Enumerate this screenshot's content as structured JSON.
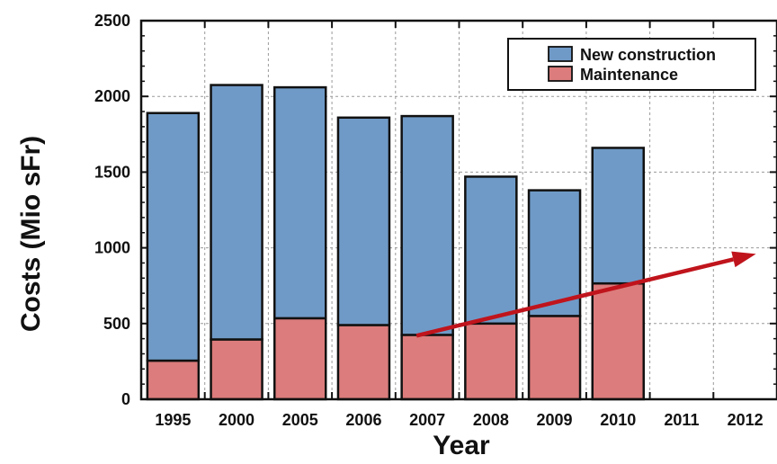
{
  "chart_data": {
    "type": "bar",
    "stacked": true,
    "categories": [
      "1995",
      "2000",
      "2005",
      "2006",
      "2007",
      "2008",
      "2009",
      "2010",
      "2011",
      "2012"
    ],
    "series": [
      {
        "name": "Maintenance",
        "color": "#dc7c7c",
        "values": [
          255,
          395,
          535,
          490,
          425,
          500,
          550,
          765,
          null,
          null
        ]
      },
      {
        "name": "New construction",
        "color": "#6f9ac7",
        "values": [
          1635,
          1680,
          1525,
          1370,
          1445,
          970,
          830,
          895,
          null,
          null
        ]
      }
    ],
    "xlabel": "Year",
    "ylabel": "Costs (Mio sFr)",
    "ylim": [
      0,
      2500
    ],
    "yticks": [
      0,
      500,
      1000,
      1500,
      2000,
      2500
    ],
    "grid": true,
    "legend": {
      "position": "top-right",
      "entries": [
        "New construction",
        "Maintenance"
      ]
    },
    "trend_arrow": {
      "color": "#c0141c",
      "from": {
        "x": "2007",
        "y": 420
      },
      "to": {
        "x": "2012",
        "y": 960
      }
    }
  }
}
